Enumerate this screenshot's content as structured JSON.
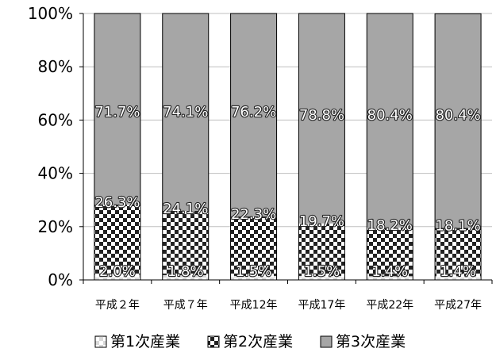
{
  "chart_data": {
    "type": "bar",
    "stacked": true,
    "normalized": true,
    "categories": [
      "平成２年",
      "平成７年",
      "平成12年",
      "平成17年",
      "平成22年",
      "平成27年"
    ],
    "series": [
      {
        "name": "第1次産業",
        "values": [
          2.0,
          1.8,
          1.5,
          1.5,
          1.4,
          1.4
        ],
        "labels": [
          "2.0%",
          "1.8%",
          "1.5%",
          "1.5%",
          "1.4%",
          "1.4%"
        ],
        "fill": "checker-light"
      },
      {
        "name": "第2次産業",
        "values": [
          26.3,
          24.1,
          22.3,
          19.7,
          18.2,
          18.1
        ],
        "labels": [
          "26.3%",
          "24.1%",
          "22.3%",
          "19.7%",
          "18.2%",
          "18.1%"
        ],
        "fill": "checker"
      },
      {
        "name": "第3次産業",
        "values": [
          71.7,
          74.1,
          76.2,
          78.8,
          80.4,
          80.4
        ],
        "labels": [
          "71.7%",
          "74.1%",
          "76.2%",
          "78.8%",
          "80.4%",
          "80.4%"
        ],
        "fill": "#a6a6a6"
      }
    ],
    "y_ticks": [
      "0%",
      "20%",
      "40%",
      "60%",
      "80%",
      "100%"
    ],
    "ylim": [
      0,
      100
    ],
    "grid": true,
    "legend": "bottom",
    "colors": {
      "tertiary": "#a6a6a6",
      "checker_dark": "#222222",
      "checker_light": "#ffffff",
      "grid": "#bfbfbf",
      "axis": "#000000"
    }
  }
}
